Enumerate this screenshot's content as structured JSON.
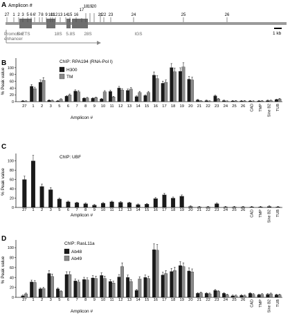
{
  "colors": {
    "dark_series": "#1a1a1a",
    "light_series": "#8a8a8a",
    "gene_body": "#6e6e6e",
    "axis": "#222222"
  },
  "panel_a": {
    "letter": "A",
    "title": "Amplicon #",
    "ticks": [
      "27",
      "1",
      "2",
      "3",
      "5",
      "6",
      "6'",
      "7",
      "8",
      "9",
      "10",
      "11",
      "12",
      "13",
      "14",
      "15",
      "16",
      "17",
      "18",
      "19",
      "20",
      "21",
      "22",
      "23",
      "24",
      "25",
      "26"
    ],
    "region_labels": [
      "5' ETS",
      "18S",
      "5.8S",
      "28S",
      "IGS"
    ],
    "promoter_label": "Promoter/\nenhancer",
    "scale_label": "1 kb"
  },
  "chart_data": [
    {
      "type": "bar",
      "panel": "B",
      "title": "ChIP: RPA194 (RNA-Pol I)",
      "ylabel": "% Peak value",
      "xlabel": "Amplicon #",
      "ylim": [
        0,
        120
      ],
      "yticks": [
        0,
        20,
        40,
        60,
        80,
        100
      ],
      "legend": "top-left",
      "categories": [
        "27",
        "1",
        "2",
        "3",
        "5",
        "6",
        "7",
        "8",
        "9",
        "10",
        "11",
        "12",
        "13",
        "14",
        "15",
        "16",
        "17",
        "18",
        "19",
        "20",
        "21",
        "22",
        "23",
        "24",
        "25",
        "26",
        "CAD",
        "TMP",
        "Sine B2",
        "TUB"
      ],
      "series": [
        {
          "name": "H300",
          "values": [
            2,
            45,
            57,
            4,
            2,
            16,
            31,
            10,
            10,
            8,
            30,
            40,
            33,
            15,
            18,
            78,
            54,
            100,
            89,
            66,
            5,
            3,
            17,
            3,
            2,
            2,
            2,
            2,
            3,
            6
          ]
        },
        {
          "name": "TM",
          "values": [
            1,
            38,
            63,
            3,
            7,
            20,
            29,
            11,
            12,
            29,
            14,
            34,
            37,
            27,
            27,
            68,
            57,
            88,
            102,
            64,
            2,
            1,
            8,
            1,
            2,
            2,
            1,
            2,
            3,
            8
          ]
        }
      ]
    },
    {
      "type": "bar",
      "panel": "C",
      "title": "ChIP: UBF",
      "ylabel": "% Peak value",
      "xlabel": "Amplicon #",
      "ylim": [
        0,
        110
      ],
      "yticks": [
        0,
        20,
        40,
        60,
        80,
        100
      ],
      "categories": [
        "27",
        "1",
        "2",
        "3",
        "5",
        "6",
        "7",
        "8",
        "9",
        "10",
        "11",
        "12",
        "13",
        "14",
        "15",
        "16",
        "17",
        "18",
        "19",
        "20",
        "21",
        "22",
        "23",
        "24",
        "25",
        "26",
        "CAD",
        "TMP",
        "Sine B2",
        "TUB"
      ],
      "series": [
        {
          "name": "",
          "values": [
            60,
            100,
            45,
            38,
            18,
            12,
            10,
            8,
            5,
            9,
            12,
            11,
            10,
            6,
            7,
            19,
            27,
            20,
            24,
            2,
            1,
            1,
            8,
            1,
            1,
            1,
            1,
            1,
            2,
            1
          ]
        }
      ]
    },
    {
      "type": "bar",
      "panel": "D",
      "title": "ChIP: RasL11a",
      "ylabel": "% Peak value",
      "xlabel": "Amplicon #",
      "ylim": [
        0,
        110
      ],
      "yticks": [
        0,
        20,
        40,
        60,
        80,
        100
      ],
      "legend": "top-left",
      "categories": [
        "27",
        "1",
        "2",
        "3",
        "5",
        "6",
        "7",
        "8",
        "9",
        "10",
        "11",
        "12",
        "13",
        "14",
        "15",
        "16",
        "17",
        "18",
        "19",
        "20",
        "21",
        "22",
        "23",
        "24",
        "25",
        "26",
        "CAD",
        "TMP",
        "Sine B2",
        "TUB"
      ],
      "series": [
        {
          "name": "Ab48",
          "values": [
            3,
            31,
            17,
            48,
            17,
            46,
            33,
            36,
            39,
            44,
            32,
            41,
            40,
            14,
            40,
            96,
            45,
            52,
            64,
            53,
            8,
            8,
            14,
            8,
            3,
            4,
            8,
            5,
            6,
            5
          ]
        },
        {
          "name": "Ab49",
          "values": [
            7,
            30,
            18,
            42,
            12,
            46,
            31,
            35,
            38,
            38,
            29,
            62,
            32,
            37,
            38,
            95,
            48,
            54,
            62,
            51,
            9,
            7,
            12,
            5,
            3,
            3,
            6,
            6,
            7,
            5
          ]
        }
      ]
    }
  ]
}
